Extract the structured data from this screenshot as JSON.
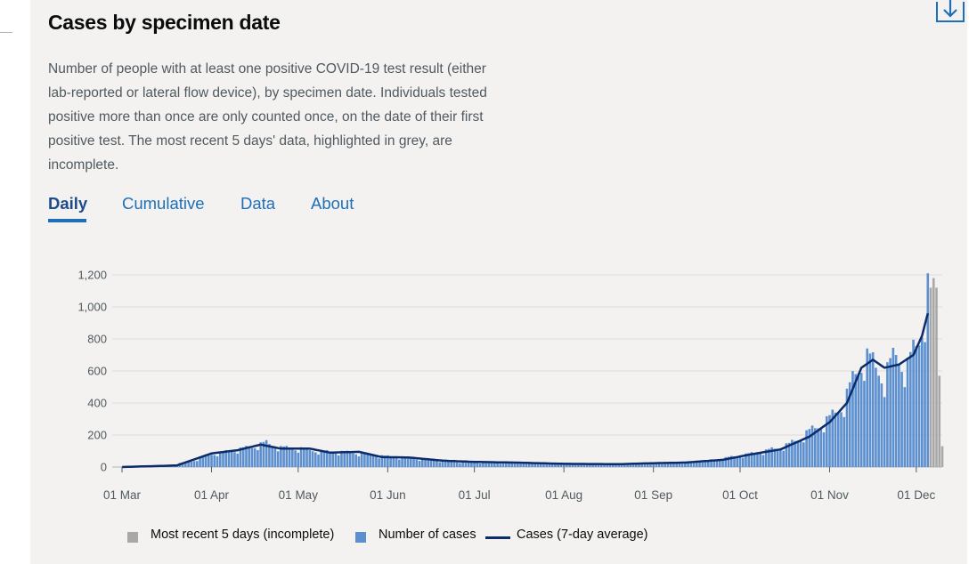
{
  "title": "Cases by specimen date",
  "description": "Number of people with at least one positive COVID-19 test result (either lab-reported or lateral flow device), by specimen date. Individuals tested positive more than once are only counted once, on the date of their first positive test. The most recent 5 days' data, highlighted in grey, are incomplete.",
  "tabs": [
    {
      "label": "Daily",
      "active": true
    },
    {
      "label": "Cumulative",
      "active": false
    },
    {
      "label": "Data",
      "active": false
    },
    {
      "label": "About",
      "active": false
    }
  ],
  "download_icon": "download-icon",
  "colors": {
    "bar": "#5b8fcf",
    "incomplete": "#a8a8a8",
    "line": "#0b2b6b",
    "tab_link": "#1d70b8"
  },
  "chart_data": {
    "type": "bar",
    "title": "",
    "xlabel": "",
    "ylabel": "",
    "ylim": [
      0,
      1250
    ],
    "yticks": [
      0,
      200,
      400,
      600,
      800,
      1000,
      1200
    ],
    "ytick_labels": [
      "0",
      "200",
      "400",
      "600",
      "800",
      "1,000",
      "1,200"
    ],
    "xticks": [
      "01 Mar",
      "01 Apr",
      "01 May",
      "01 Jun",
      "01 Jul",
      "01 Aug",
      "01 Sep",
      "01 Oct",
      "01 Nov",
      "01 Dec"
    ],
    "x_range": [
      "2020-03-01",
      "2020-12-10"
    ],
    "grid": true,
    "legend_position": "bottom",
    "legend": [
      {
        "label": "Most recent 5 days (incomplete)",
        "kind": "incomplete"
      },
      {
        "label": "Number of cases",
        "kind": "bar"
      },
      {
        "label": "Cases (7-day average)",
        "kind": "line"
      }
    ],
    "daily_anchors": [
      [
        "2020-03-01",
        0
      ],
      [
        "2020-03-15",
        6
      ],
      [
        "2020-03-25",
        35
      ],
      [
        "2020-04-01",
        80
      ],
      [
        "2020-04-08",
        100
      ],
      [
        "2020-04-15",
        125
      ],
      [
        "2020-04-20",
        150
      ],
      [
        "2020-04-25",
        120
      ],
      [
        "2020-05-01",
        115
      ],
      [
        "2020-05-10",
        95
      ],
      [
        "2020-05-20",
        90
      ],
      [
        "2020-05-28",
        70
      ],
      [
        "2020-06-05",
        60
      ],
      [
        "2020-06-15",
        45
      ],
      [
        "2020-06-25",
        32
      ],
      [
        "2020-07-05",
        28
      ],
      [
        "2020-07-20",
        25
      ],
      [
        "2020-08-01",
        20
      ],
      [
        "2020-08-20",
        18
      ],
      [
        "2020-09-01",
        22
      ],
      [
        "2020-09-10",
        25
      ],
      [
        "2020-09-20",
        40
      ],
      [
        "2020-10-01",
        70
      ],
      [
        "2020-10-10",
        100
      ],
      [
        "2020-10-18",
        140
      ],
      [
        "2020-10-25",
        220
      ],
      [
        "2020-11-01",
        300
      ],
      [
        "2020-11-06",
        400
      ],
      [
        "2020-11-10",
        580
      ],
      [
        "2020-11-13",
        690
      ],
      [
        "2020-11-16",
        640
      ],
      [
        "2020-11-20",
        560
      ],
      [
        "2020-11-24",
        700
      ],
      [
        "2020-11-28",
        620
      ],
      [
        "2020-12-02",
        800
      ],
      [
        "2020-12-05",
        1100
      ]
    ],
    "incomplete_days": [
      [
        "2020-12-06",
        1120
      ],
      [
        "2020-12-07",
        1180
      ],
      [
        "2020-12-08",
        1120
      ],
      [
        "2020-12-09",
        570
      ],
      [
        "2020-12-10",
        130
      ]
    ],
    "average_anchors": [
      [
        "2020-03-01",
        0
      ],
      [
        "2020-03-20",
        10
      ],
      [
        "2020-04-01",
        85
      ],
      [
        "2020-04-10",
        105
      ],
      [
        "2020-04-18",
        140
      ],
      [
        "2020-04-25",
        115
      ],
      [
        "2020-05-05",
        115
      ],
      [
        "2020-05-12",
        90
      ],
      [
        "2020-05-22",
        95
      ],
      [
        "2020-05-30",
        62
      ],
      [
        "2020-06-08",
        60
      ],
      [
        "2020-06-20",
        40
      ],
      [
        "2020-07-01",
        32
      ],
      [
        "2020-07-15",
        28
      ],
      [
        "2020-08-01",
        20
      ],
      [
        "2020-08-20",
        18
      ],
      [
        "2020-09-01",
        24
      ],
      [
        "2020-09-12",
        28
      ],
      [
        "2020-09-25",
        45
      ],
      [
        "2020-10-05",
        80
      ],
      [
        "2020-10-15",
        110
      ],
      [
        "2020-10-25",
        190
      ],
      [
        "2020-11-01",
        280
      ],
      [
        "2020-11-07",
        400
      ],
      [
        "2020-11-12",
        620
      ],
      [
        "2020-11-16",
        670
      ],
      [
        "2020-11-20",
        620
      ],
      [
        "2020-11-25",
        640
      ],
      [
        "2020-11-30",
        700
      ],
      [
        "2020-12-03",
        820
      ],
      [
        "2020-12-05",
        960
      ]
    ]
  }
}
